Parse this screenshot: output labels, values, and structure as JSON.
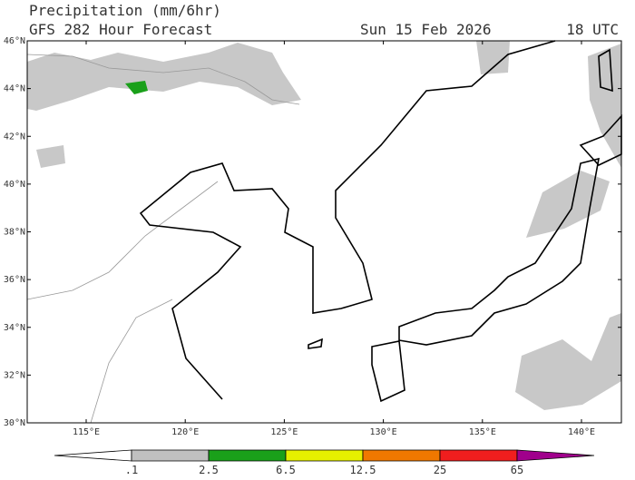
{
  "header": {
    "title": "Precipitation (mm/6hr)",
    "subtitle": "GFS 282 Hour Forecast",
    "date": "Sun 15 Feb 2026",
    "time": "18 UTC"
  },
  "map": {
    "lat_labels": [
      "46°N",
      "44°N",
      "42°N",
      "40°N",
      "38°N",
      "36°N",
      "34°N",
      "32°N",
      "30°N"
    ],
    "lon_labels": [
      "115°E",
      "120°E",
      "125°E",
      "130°E",
      "135°E",
      "140°E"
    ]
  },
  "colorbar": {
    "labels": [
      ".1",
      "2.5",
      "6.5",
      "12.5",
      "25",
      "65"
    ],
    "colors": [
      "#ffffff",
      "#c0c0c0",
      "#1aa01a",
      "#e6f000",
      "#f07800",
      "#f01e1e",
      "#a0008c"
    ]
  }
}
